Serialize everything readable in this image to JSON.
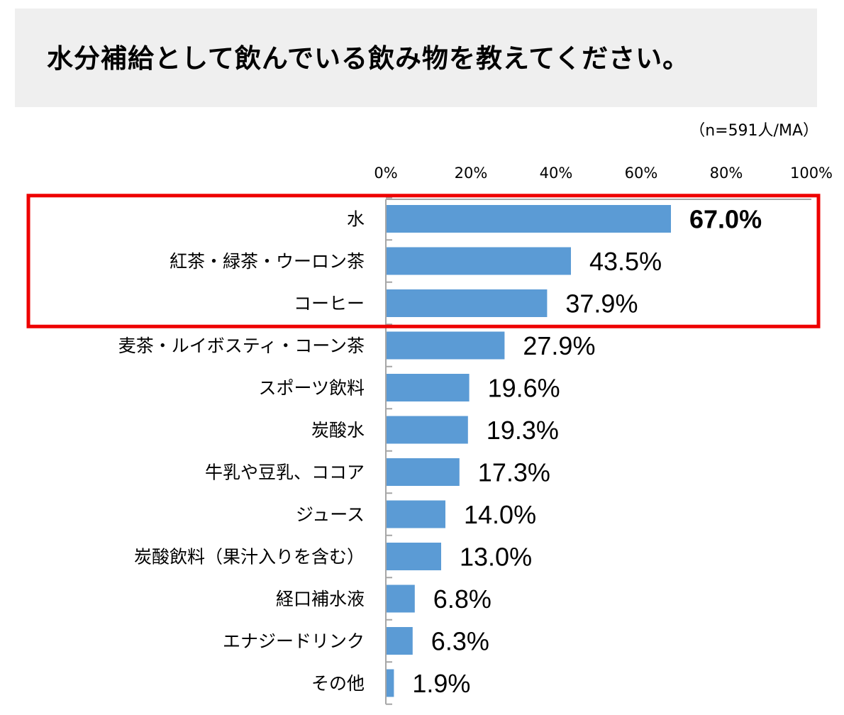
{
  "title": "水分補給として飲んでいる飲み物を教えてください。",
  "sample_note": "（n=591人/MA）",
  "colors": {
    "bar": "#5b9bd5",
    "highlight": "#ee0000",
    "title_bg": "#efefef",
    "axis": "#a6a6a6"
  },
  "chart_data": {
    "type": "bar",
    "orientation": "horizontal",
    "title": "水分補給として飲んでいる飲み物を教えてください。",
    "xlim": [
      0,
      100
    ],
    "x_ticks": [
      "0%",
      "20%",
      "40%",
      "60%",
      "80%",
      "100%"
    ],
    "grid": false,
    "highlighted_categories": [
      "水",
      "紅茶・緑茶・ウーロン茶",
      "コーヒー"
    ],
    "bold_label_category": "水",
    "categories": [
      "水",
      "紅茶・緑茶・ウーロン茶",
      "コーヒー",
      "麦茶・ルイボスティ・コーン茶",
      "スポーツ飲料",
      "炭酸水",
      "牛乳や豆乳、ココア",
      "ジュース",
      "炭酸飲料（果汁入りを含む）",
      "経口補水液",
      "エナジードリンク",
      "その他"
    ],
    "values": [
      67.0,
      43.5,
      37.9,
      27.9,
      19.6,
      19.3,
      17.3,
      14.0,
      13.0,
      6.8,
      6.3,
      1.9
    ],
    "value_labels": [
      "67.0%",
      "43.5%",
      "37.9%",
      "27.9%",
      "19.6%",
      "19.3%",
      "17.3%",
      "14.0%",
      "13.0%",
      "6.8%",
      "6.3%",
      "1.9%"
    ]
  }
}
